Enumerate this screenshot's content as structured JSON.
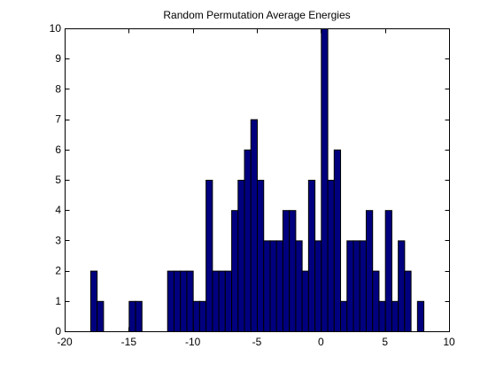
{
  "chart_data": {
    "type": "bar",
    "title": "Random Permutation Average Energies",
    "xlabel": "",
    "ylabel": "",
    "xlim": [
      -20,
      10
    ],
    "ylim": [
      0,
      10
    ],
    "grid": false,
    "bar_color": "#00007f",
    "edge_color": "#000000",
    "x_ticks": [
      -20,
      -15,
      -10,
      -5,
      0,
      5,
      10
    ],
    "y_ticks": [
      0,
      1,
      2,
      3,
      4,
      5,
      6,
      7,
      8,
      9,
      10
    ],
    "x_tick_labels": [
      "-20",
      "-15",
      "-10",
      "-5",
      "0",
      "5",
      "10"
    ],
    "y_tick_labels": [
      "0",
      "1",
      "2",
      "3",
      "4",
      "5",
      "6",
      "7",
      "8",
      "9",
      "10"
    ],
    "bins": {
      "start": -20,
      "width": 0.5,
      "counts": [
        0,
        0,
        0,
        0,
        2,
        1,
        0,
        0,
        0,
        0,
        1,
        1,
        0,
        0,
        0,
        0,
        2,
        2,
        2,
        2,
        1,
        1,
        5,
        2,
        2,
        2,
        4,
        5,
        6,
        7,
        5,
        3,
        3,
        3,
        4,
        4,
        3,
        2,
        5,
        3,
        10,
        5,
        6,
        1,
        3,
        3,
        3,
        4,
        2,
        1,
        4,
        1,
        3,
        2,
        0,
        1
      ]
    }
  }
}
